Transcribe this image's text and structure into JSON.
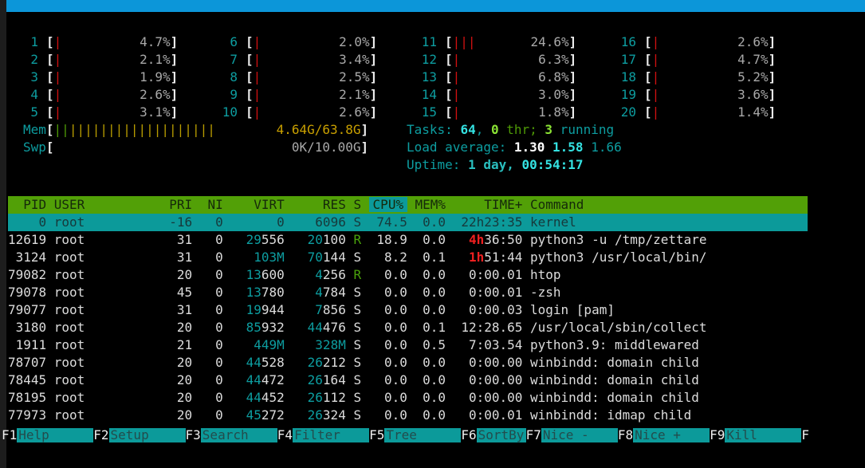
{
  "glyphs": {
    "open": "[",
    "close": "]",
    "bar": "|"
  },
  "cpu_meters": [
    {
      "id": "1",
      "bars": 1,
      "pct": "4.7%"
    },
    {
      "id": "2",
      "bars": 1,
      "pct": "2.1%"
    },
    {
      "id": "3",
      "bars": 1,
      "pct": "1.9%"
    },
    {
      "id": "4",
      "bars": 1,
      "pct": "2.6%"
    },
    {
      "id": "5",
      "bars": 1,
      "pct": "3.1%"
    },
    {
      "id": "6",
      "bars": 1,
      "pct": "2.0%"
    },
    {
      "id": "7",
      "bars": 1,
      "pct": "3.4%"
    },
    {
      "id": "8",
      "bars": 1,
      "pct": "2.5%"
    },
    {
      "id": "9",
      "bars": 1,
      "pct": "2.1%"
    },
    {
      "id": "10",
      "bars": 1,
      "pct": "2.6%"
    },
    {
      "id": "11",
      "bars": 3,
      "pct": "24.6%"
    },
    {
      "id": "12",
      "bars": 1,
      "pct": "6.3%"
    },
    {
      "id": "13",
      "bars": 1,
      "pct": "6.8%"
    },
    {
      "id": "14",
      "bars": 1,
      "pct": "3.0%"
    },
    {
      "id": "15",
      "bars": 1,
      "pct": "1.8%"
    },
    {
      "id": "16",
      "bars": 1,
      "pct": "2.6%"
    },
    {
      "id": "17",
      "bars": 1,
      "pct": "4.7%"
    },
    {
      "id": "18",
      "bars": 1,
      "pct": "5.2%"
    },
    {
      "id": "19",
      "bars": 1,
      "pct": "3.6%"
    },
    {
      "id": "20",
      "bars": 1,
      "pct": "1.4%"
    }
  ],
  "memory": {
    "label": "Mem",
    "green_bars": 2,
    "yellow_bars": 19,
    "text": "4.64G/63.8G"
  },
  "swap": {
    "label": "Swp",
    "text": "0K/10.00G"
  },
  "tasks": {
    "label": "Tasks: ",
    "count": "64",
    "sep": ", ",
    "thr_count": "0",
    "thr": " thr; ",
    "running_count": "3",
    "running": " running"
  },
  "load": {
    "label": "Load average: ",
    "m1": "1.30",
    "m5": " 1.58",
    "m15": " 1.66"
  },
  "uptime": {
    "label": "Uptime: ",
    "day": "1 day,",
    "time": " 00:54:17"
  },
  "table": {
    "headers": [
      "PID",
      "USER",
      "PRI",
      "NI",
      "VIRT",
      "RES",
      "S",
      "CPU%",
      "MEM%",
      "TIME+",
      "Command"
    ],
    "sort_column": "CPU%",
    "rows": [
      {
        "selected": true,
        "pid": "0",
        "user": "root",
        "pri": "-16",
        "ni": "0",
        "virt": [
          [
            "0",
            "c-white"
          ]
        ],
        "res": [
          [
            "6096",
            "c-white"
          ]
        ],
        "s": [
          [
            "S",
            "c-white"
          ]
        ],
        "cpu": "74.5",
        "mem": "0.0",
        "time": [
          [
            "22h23:35",
            "c-white"
          ]
        ],
        "cmd": "kernel"
      },
      {
        "selected": false,
        "pid": "12619",
        "user": "root",
        "pri": "31",
        "ni": "0",
        "virt": [
          [
            "29",
            "c-cyan"
          ],
          [
            "556",
            "c-white"
          ]
        ],
        "res": [
          [
            "20",
            "c-cyan"
          ],
          [
            "100",
            "c-white"
          ]
        ],
        "s": [
          [
            "R",
            "c-green"
          ]
        ],
        "cpu": "18.9",
        "mem": "0.0",
        "time": [
          [
            "4h",
            "c-bred"
          ],
          [
            "36:50",
            "c-white"
          ]
        ],
        "cmd": "python3 -u /tmp/zettare"
      },
      {
        "selected": false,
        "pid": "3124",
        "user": "root",
        "pri": "31",
        "ni": "0",
        "virt": [
          [
            "103M",
            "c-cyan"
          ]
        ],
        "res": [
          [
            "70",
            "c-cyan"
          ],
          [
            "144",
            "c-white"
          ]
        ],
        "s": [
          [
            "S",
            "c-white"
          ]
        ],
        "cpu": "8.2",
        "mem": "0.1",
        "time": [
          [
            "1h",
            "c-bred"
          ],
          [
            "51:44",
            "c-white"
          ]
        ],
        "cmd": "python3 /usr/local/bin/"
      },
      {
        "selected": false,
        "pid": "79082",
        "user": "root",
        "pri": "20",
        "ni": "0",
        "virt": [
          [
            "13",
            "c-cyan"
          ],
          [
            "600",
            "c-white"
          ]
        ],
        "res": [
          [
            "4",
            "c-cyan"
          ],
          [
            "256",
            "c-white"
          ]
        ],
        "s": [
          [
            "R",
            "c-green"
          ]
        ],
        "cpu": "0.0",
        "mem": "0.0",
        "time": [
          [
            "0:00.01",
            "c-white"
          ]
        ],
        "cmd": "htop"
      },
      {
        "selected": false,
        "pid": "79078",
        "user": "root",
        "pri": "45",
        "ni": "0",
        "virt": [
          [
            "13",
            "c-cyan"
          ],
          [
            "780",
            "c-white"
          ]
        ],
        "res": [
          [
            "4",
            "c-cyan"
          ],
          [
            "784",
            "c-white"
          ]
        ],
        "s": [
          [
            "S",
            "c-white"
          ]
        ],
        "cpu": "0.0",
        "mem": "0.0",
        "time": [
          [
            "0:00.01",
            "c-white"
          ]
        ],
        "cmd": "-zsh"
      },
      {
        "selected": false,
        "pid": "79077",
        "user": "root",
        "pri": "31",
        "ni": "0",
        "virt": [
          [
            "19",
            "c-cyan"
          ],
          [
            "944",
            "c-white"
          ]
        ],
        "res": [
          [
            "7",
            "c-cyan"
          ],
          [
            "856",
            "c-white"
          ]
        ],
        "s": [
          [
            "S",
            "c-white"
          ]
        ],
        "cpu": "0.0",
        "mem": "0.0",
        "time": [
          [
            "0:00.03",
            "c-white"
          ]
        ],
        "cmd": "login [pam]"
      },
      {
        "selected": false,
        "pid": "3180",
        "user": "root",
        "pri": "20",
        "ni": "0",
        "virt": [
          [
            "85",
            "c-cyan"
          ],
          [
            "932",
            "c-white"
          ]
        ],
        "res": [
          [
            "44",
            "c-cyan"
          ],
          [
            "476",
            "c-white"
          ]
        ],
        "s": [
          [
            "S",
            "c-white"
          ]
        ],
        "cpu": "0.0",
        "mem": "0.1",
        "time": [
          [
            "12:28.65",
            "c-white"
          ]
        ],
        "cmd": "/usr/local/sbin/collect"
      },
      {
        "selected": false,
        "pid": "1911",
        "user": "root",
        "pri": "21",
        "ni": "0",
        "virt": [
          [
            "449M",
            "c-cyan"
          ]
        ],
        "res": [
          [
            "328M",
            "c-cyan"
          ]
        ],
        "s": [
          [
            "S",
            "c-white"
          ]
        ],
        "cpu": "0.0",
        "mem": "0.5",
        "time": [
          [
            "7:03.54",
            "c-white"
          ]
        ],
        "cmd": "python3.9: middlewared"
      },
      {
        "selected": false,
        "pid": "78707",
        "user": "root",
        "pri": "20",
        "ni": "0",
        "virt": [
          [
            "44",
            "c-cyan"
          ],
          [
            "528",
            "c-white"
          ]
        ],
        "res": [
          [
            "26",
            "c-cyan"
          ],
          [
            "212",
            "c-white"
          ]
        ],
        "s": [
          [
            "S",
            "c-white"
          ]
        ],
        "cpu": "0.0",
        "mem": "0.0",
        "time": [
          [
            "0:00.00",
            "c-white"
          ]
        ],
        "cmd": "winbindd: domain child"
      },
      {
        "selected": false,
        "pid": "78445",
        "user": "root",
        "pri": "20",
        "ni": "0",
        "virt": [
          [
            "44",
            "c-cyan"
          ],
          [
            "472",
            "c-white"
          ]
        ],
        "res": [
          [
            "26",
            "c-cyan"
          ],
          [
            "164",
            "c-white"
          ]
        ],
        "s": [
          [
            "S",
            "c-white"
          ]
        ],
        "cpu": "0.0",
        "mem": "0.0",
        "time": [
          [
            "0:00.00",
            "c-white"
          ]
        ],
        "cmd": "winbindd: domain child"
      },
      {
        "selected": false,
        "pid": "78195",
        "user": "root",
        "pri": "20",
        "ni": "0",
        "virt": [
          [
            "44",
            "c-cyan"
          ],
          [
            "452",
            "c-white"
          ]
        ],
        "res": [
          [
            "26",
            "c-cyan"
          ],
          [
            "112",
            "c-white"
          ]
        ],
        "s": [
          [
            "S",
            "c-white"
          ]
        ],
        "cpu": "0.0",
        "mem": "0.0",
        "time": [
          [
            "0:00.00",
            "c-white"
          ]
        ],
        "cmd": "winbindd: domain child"
      },
      {
        "selected": false,
        "pid": "77973",
        "user": "root",
        "pri": "20",
        "ni": "0",
        "virt": [
          [
            "45",
            "c-cyan"
          ],
          [
            "272",
            "c-white"
          ]
        ],
        "res": [
          [
            "26",
            "c-cyan"
          ],
          [
            "324",
            "c-white"
          ]
        ],
        "s": [
          [
            "S",
            "c-white"
          ]
        ],
        "cpu": "0.0",
        "mem": "0.0",
        "time": [
          [
            "0:00.01",
            "c-white"
          ]
        ],
        "cmd": "winbindd: idmap child"
      }
    ]
  },
  "fkeys": [
    {
      "key": "F1",
      "label": "Help",
      "narrow": false
    },
    {
      "key": "F2",
      "label": "Setup",
      "narrow": false
    },
    {
      "key": "F3",
      "label": "Search",
      "narrow": false
    },
    {
      "key": "F4",
      "label": "Filter",
      "narrow": false
    },
    {
      "key": "F5",
      "label": "Tree",
      "narrow": false
    },
    {
      "key": "F6",
      "label": "SortBy",
      "narrow": true
    },
    {
      "key": "F7",
      "label": "Nice -",
      "narrow": false
    },
    {
      "key": "F8",
      "label": "Nice +",
      "narrow": false
    },
    {
      "key": "F9",
      "label": "Kill",
      "narrow": false
    },
    {
      "key": "F",
      "label": null,
      "narrow": false
    }
  ],
  "colors": {
    "titlebar_blue": "#0c96d9",
    "header_green": "#52a007",
    "selection_teal": "#0c9a9a",
    "cyan": "#0d9da0",
    "bright_cyan": "#34e2e2",
    "red_bar": "#d01010",
    "bright_red": "#ef2020",
    "green": "#4aa30b",
    "bright_green": "#8ae234",
    "yellow": "#c9a000"
  }
}
